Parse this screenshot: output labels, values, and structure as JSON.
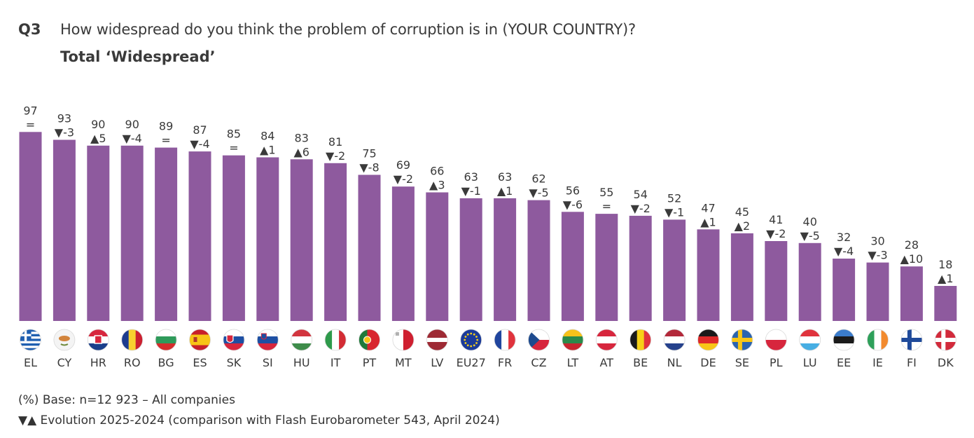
{
  "header": {
    "question_number": "Q3",
    "question_text": "How widespread do you think the problem of corruption is in (YOUR COUNTRY)?",
    "subtitle": "Total ‘Widespread’"
  },
  "footer": {
    "base_note": "(%) Base: n=12 923  – All companies",
    "evolution_note": "▼▲ Evolution 2025-2024 (comparison with Flash Eurobarometer 543, April 2024)"
  },
  "colors": {
    "bar": "#8e5a9e",
    "text": "#3a3a3a"
  },
  "chart_data": {
    "type": "bar",
    "title": "How widespread do you think the problem of corruption is in (YOUR COUNTRY)?",
    "subtitle": "Total ‘Widespread’",
    "xlabel": "",
    "ylabel": "",
    "ylim": [
      0,
      100
    ],
    "grid": false,
    "categories": [
      "EL",
      "CY",
      "HR",
      "RO",
      "BG",
      "ES",
      "SK",
      "SI",
      "HU",
      "IT",
      "PT",
      "MT",
      "LV",
      "EU27",
      "FR",
      "CZ",
      "LT",
      "AT",
      "BE",
      "NL",
      "DE",
      "SE",
      "PL",
      "LU",
      "EE",
      "IE",
      "FI",
      "DK"
    ],
    "values": [
      97,
      93,
      90,
      90,
      89,
      87,
      85,
      84,
      83,
      81,
      75,
      69,
      66,
      63,
      63,
      62,
      56,
      55,
      54,
      52,
      47,
      45,
      41,
      40,
      32,
      30,
      28,
      18
    ],
    "changes": [
      "=",
      "▼-3",
      "▲5",
      "▼-4",
      "=",
      "▼-4",
      "=",
      "▲1",
      "▲6",
      "▼-2",
      "▼-8",
      "▼-2",
      "▲3",
      "▼-1",
      "▲1",
      "▼-5",
      "▼-6",
      "=",
      "▼-2",
      "▼-1",
      "▲1",
      "▲2",
      "▼-2",
      "▼-5",
      "▼-4",
      "▼-3",
      "▲10",
      "▲1"
    ],
    "flags": [
      "flag-greece-icon",
      "flag-cyprus-icon",
      "flag-croatia-icon",
      "flag-romania-icon",
      "flag-bulgaria-icon",
      "flag-spain-icon",
      "flag-slovakia-icon",
      "flag-slovenia-icon",
      "flag-hungary-icon",
      "flag-italy-icon",
      "flag-portugal-icon",
      "flag-malta-icon",
      "flag-latvia-icon",
      "flag-eu-icon",
      "flag-france-icon",
      "flag-czechia-icon",
      "flag-lithuania-icon",
      "flag-austria-icon",
      "flag-belgium-icon",
      "flag-netherlands-icon",
      "flag-germany-icon",
      "flag-sweden-icon",
      "flag-poland-icon",
      "flag-luxembourg-icon",
      "flag-estonia-icon",
      "flag-ireland-icon",
      "flag-finland-icon",
      "flag-denmark-icon"
    ]
  }
}
